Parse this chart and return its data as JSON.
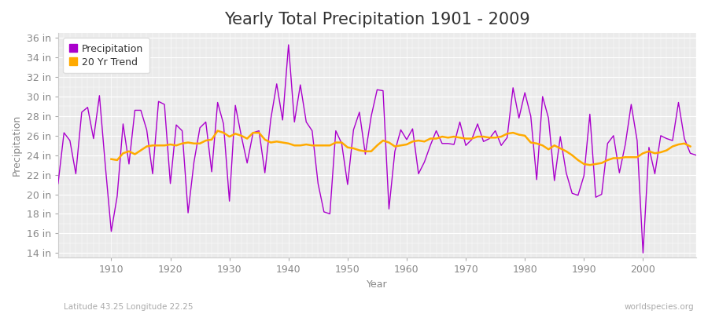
{
  "title": "Yearly Total Precipitation 1901 - 2009",
  "xlabel": "Year",
  "ylabel": "Precipitation",
  "bottom_left_label": "Latitude 43.25 Longitude 22.25",
  "bottom_right_label": "worldspecies.org",
  "ylim": [
    13.5,
    36.5
  ],
  "yticks": [
    14,
    16,
    18,
    20,
    22,
    24,
    26,
    28,
    30,
    32,
    34,
    36
  ],
  "ytick_labels": [
    "14 in",
    "16 in",
    "18 in",
    "20 in",
    "22 in",
    "24 in",
    "26 in",
    "28 in",
    "30 in",
    "32 in",
    "34 in",
    "36 in"
  ],
  "xticks": [
    1910,
    1920,
    1930,
    1940,
    1950,
    1960,
    1970,
    1980,
    1990,
    2000
  ],
  "xlim": [
    1901,
    2009
  ],
  "precip_color": "#aa00cc",
  "trend_color": "#ffaa00",
  "figure_bg": "#ffffff",
  "plot_bg": "#ebebeb",
  "grid_color": "#ffffff",
  "title_fontsize": 15,
  "label_fontsize": 9,
  "tick_color": "#888888",
  "years": [
    1901,
    1902,
    1903,
    1904,
    1905,
    1906,
    1907,
    1908,
    1909,
    1910,
    1911,
    1912,
    1913,
    1914,
    1915,
    1916,
    1917,
    1918,
    1919,
    1920,
    1921,
    1922,
    1923,
    1924,
    1925,
    1926,
    1927,
    1928,
    1929,
    1930,
    1931,
    1932,
    1933,
    1934,
    1935,
    1936,
    1937,
    1938,
    1939,
    1940,
    1941,
    1942,
    1943,
    1944,
    1945,
    1946,
    1947,
    1948,
    1949,
    1950,
    1951,
    1952,
    1953,
    1954,
    1955,
    1956,
    1957,
    1958,
    1959,
    1960,
    1961,
    1962,
    1963,
    1964,
    1965,
    1966,
    1967,
    1968,
    1969,
    1970,
    1971,
    1972,
    1973,
    1974,
    1975,
    1976,
    1977,
    1978,
    1979,
    1980,
    1981,
    1982,
    1983,
    1984,
    1985,
    1986,
    1987,
    1988,
    1989,
    1990,
    1991,
    1992,
    1993,
    1994,
    1995,
    1996,
    1997,
    1998,
    1999,
    2000,
    2001,
    2002,
    2003,
    2004,
    2005,
    2006,
    2007,
    2008,
    2009
  ],
  "precip": [
    21.1,
    26.3,
    25.5,
    22.1,
    28.4,
    28.9,
    25.7,
    30.1,
    22.9,
    16.2,
    19.8,
    27.2,
    23.1,
    28.6,
    28.6,
    26.6,
    22.1,
    29.5,
    29.2,
    21.1,
    27.1,
    26.5,
    18.1,
    23.3,
    26.8,
    27.4,
    22.3,
    29.4,
    27.2,
    19.3,
    29.1,
    26.0,
    23.2,
    26.3,
    26.5,
    22.2,
    27.7,
    31.3,
    27.6,
    35.3,
    27.4,
    31.2,
    27.4,
    26.5,
    21.1,
    18.2,
    18.0,
    26.5,
    25.2,
    21.0,
    26.6,
    28.4,
    24.1,
    28.0,
    30.7,
    30.6,
    18.5,
    24.4,
    26.6,
    25.6,
    26.7,
    22.1,
    23.3,
    25.0,
    26.5,
    25.2,
    25.2,
    25.1,
    27.4,
    25.0,
    25.6,
    27.2,
    25.4,
    25.7,
    26.5,
    25.0,
    25.8,
    30.9,
    27.8,
    30.4,
    28.0,
    21.5,
    30.0,
    27.8,
    21.4,
    25.9,
    22.2,
    20.1,
    19.9,
    21.9,
    28.2,
    19.7,
    20.0,
    25.2,
    26.0,
    22.2,
    25.1,
    29.2,
    25.5,
    14.0,
    24.8,
    22.1,
    26.0,
    25.7,
    25.5,
    29.4,
    25.7,
    24.2,
    24.0
  ],
  "trend": [
    null,
    null,
    null,
    null,
    null,
    null,
    null,
    null,
    null,
    23.6,
    23.5,
    24.2,
    24.4,
    24.1,
    24.5,
    24.9,
    25.0,
    25.0,
    25.0,
    25.1,
    25.0,
    25.2,
    25.3,
    25.2,
    25.2,
    25.5,
    25.6,
    26.5,
    26.3,
    25.9,
    26.2,
    26.0,
    25.7,
    26.3,
    26.3,
    25.6,
    25.3,
    25.4,
    25.3,
    25.2,
    25.0,
    25.0,
    25.1,
    25.0,
    25.0,
    25.0,
    25.0,
    25.3,
    25.3,
    24.8,
    24.7,
    24.5,
    24.4,
    24.4,
    25.0,
    25.5,
    25.3,
    24.9,
    25.0,
    25.1,
    25.4,
    25.5,
    25.4,
    25.7,
    25.7,
    25.9,
    25.8,
    25.9,
    25.8,
    25.7,
    25.7,
    25.9,
    25.9,
    25.8,
    25.8,
    25.9,
    26.2,
    26.3,
    26.1,
    26.0,
    25.3,
    25.2,
    25.0,
    24.6,
    25.0,
    24.7,
    24.4,
    24.0,
    23.5,
    23.1,
    23.0,
    23.1,
    23.2,
    23.5,
    23.7,
    23.7,
    23.8,
    23.8,
    23.8,
    24.2,
    24.4,
    24.2,
    24.3,
    24.5,
    24.9,
    25.1,
    25.2,
    24.9
  ]
}
